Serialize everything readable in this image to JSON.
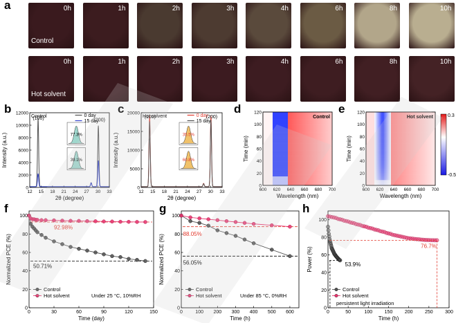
{
  "panel_a": {
    "letter": "a",
    "rows": [
      {
        "name": "control",
        "label": "Control",
        "tiles": [
          {
            "time": "0h",
            "color": "#3a1a1e"
          },
          {
            "time": "1h",
            "color": "#3c1c1f"
          },
          {
            "time": "2h",
            "color": "#4a3a30"
          },
          {
            "time": "3h",
            "color": "#4d3b31"
          },
          {
            "time": "4h",
            "color": "#5a4a3c"
          },
          {
            "time": "6h",
            "color": "#6b5b44"
          },
          {
            "time": "8h",
            "color": "#b2a68a"
          },
          {
            "time": "10h",
            "color": "#b9ae90"
          }
        ]
      },
      {
        "name": "hot-solvent",
        "label": "Hot solvent",
        "tiles": [
          {
            "time": "0h",
            "color": "#3b1a1f"
          },
          {
            "time": "1h",
            "color": "#3b1a1f"
          },
          {
            "time": "2h",
            "color": "#3c1b20"
          },
          {
            "time": "3h",
            "color": "#3c1b20"
          },
          {
            "time": "4h",
            "color": "#3d1c21"
          },
          {
            "time": "6h",
            "color": "#3e1d21"
          },
          {
            "time": "8h",
            "color": "#411f23"
          },
          {
            "time": "10h",
            "color": "#442225"
          }
        ]
      }
    ]
  },
  "colors": {
    "control": "#505050",
    "hot_solvent": "#e8336d",
    "red": "#e23a2e",
    "blue": "#3344cc",
    "dashed_gray": "#555555"
  },
  "chart_data": [
    {
      "id": "b",
      "letter": "b",
      "type": "line",
      "sample_label": "Control",
      "xlabel": "2θ (degree)",
      "ylabel": "Intensity (a.u.)",
      "xlim": [
        12,
        33
      ],
      "ylim": [
        0,
        12000
      ],
      "xticks": [
        12,
        15,
        18,
        21,
        24,
        27,
        30,
        33
      ],
      "yticks": [
        0,
        2000,
        4000,
        6000,
        8000,
        10000,
        12000
      ],
      "peak_labels": [
        {
          "x": 14.3,
          "y": 10900,
          "text": "(100)"
        },
        {
          "x": 30.4,
          "y": 10600,
          "text": "(200)"
        }
      ],
      "series": [
        {
          "name": "0 day",
          "color": "#505050",
          "peaks": [
            [
              14.2,
              11000
            ],
            [
              28.2,
              650
            ],
            [
              30.1,
              9800
            ]
          ]
        },
        {
          "name": "15 day",
          "color": "#3344cc",
          "peaks": [
            [
              14.2,
              2100
            ],
            [
              28.2,
              600
            ],
            [
              30.1,
              4200
            ]
          ]
        }
      ],
      "insets": [
        {
          "label": "77.3%"
        },
        {
          "label": "39.1%"
        }
      ]
    },
    {
      "id": "c",
      "letter": "c",
      "type": "line",
      "sample_label": "Hot solvent",
      "xlabel": "2θ (degree)",
      "ylabel": "Intensity (a.u.)",
      "xlim": [
        12,
        33
      ],
      "ylim": [
        0,
        20000
      ],
      "xticks": [
        12,
        15,
        18,
        21,
        24,
        27,
        30,
        33
      ],
      "yticks": [
        0,
        5000,
        10000,
        15000,
        20000
      ],
      "peak_labels": [
        {
          "x": 14.3,
          "y": 18500,
          "text": "(100)"
        },
        {
          "x": 30.3,
          "y": 18500,
          "text": "(200)"
        }
      ],
      "series": [
        {
          "name": "0 day",
          "color": "#e23a2e",
          "peaks": [
            [
              14.2,
              19000
            ],
            [
              28.2,
              900
            ],
            [
              30.1,
              19000
            ]
          ]
        },
        {
          "name": "15 day",
          "color": "#505050",
          "peaks": [
            [
              14.2,
              17500
            ],
            [
              28.2,
              800
            ],
            [
              30.1,
              17800
            ]
          ]
        }
      ],
      "insets": [
        {
          "label": "35.5%"
        },
        {
          "label": "60.8%"
        }
      ]
    },
    {
      "id": "d",
      "letter": "d",
      "type": "heatmap",
      "title": "Control",
      "xlabel": "Wavelength (nm)",
      "ylabel": "Time (min)",
      "xlim": [
        600,
        700
      ],
      "ylim": [
        0,
        120
      ],
      "xticks": [
        600,
        620,
        640,
        660,
        680,
        700
      ],
      "yticks": [
        0,
        20,
        40,
        60,
        80,
        100,
        120
      ]
    },
    {
      "id": "e",
      "letter": "e",
      "type": "heatmap",
      "title": "Hot solvent",
      "xlabel": "Wavelength (nm)",
      "ylabel": "Time (min)",
      "xlim": [
        600,
        700
      ],
      "ylim": [
        0,
        120
      ],
      "xticks": [
        600,
        620,
        640,
        660,
        680,
        700
      ],
      "yticks": [
        0,
        20,
        40,
        60,
        80,
        100,
        120
      ],
      "colorbar": {
        "max": "0.3",
        "min": "-0.5"
      }
    },
    {
      "id": "f",
      "letter": "f",
      "type": "line",
      "xlabel": "Time (day)",
      "ylabel": "Normalized PCE (%)",
      "xlim": [
        0,
        150
      ],
      "ylim": [
        0,
        105
      ],
      "xticks": [
        0,
        30,
        60,
        90,
        120,
        150
      ],
      "yticks": [
        0,
        20,
        40,
        60,
        80,
        100
      ],
      "condition": "Under 25 °C, 10%RH",
      "annotations": [
        {
          "text": "92.98%",
          "x": 30,
          "y": 85,
          "color": "#e23a2e"
        },
        {
          "text": "50.71%",
          "x": 5,
          "y": 43,
          "color": "#000000"
        }
      ],
      "hlines": [
        {
          "y": 93,
          "color": "#e23a2e"
        },
        {
          "y": 50.7,
          "color": "#000000"
        }
      ],
      "series": [
        {
          "name": "Control",
          "color": "#505050",
          "x": [
            0,
            2,
            4,
            6,
            8,
            10,
            15,
            20,
            30,
            40,
            50,
            60,
            70,
            80,
            90,
            100,
            110,
            120,
            130,
            140
          ],
          "y": [
            100,
            91,
            88,
            86,
            84,
            82,
            79,
            76,
            72,
            69,
            66,
            64,
            62,
            60,
            58,
            56,
            55,
            53,
            52,
            50.7
          ]
        },
        {
          "name": "Hot solvent",
          "color": "#e8336d",
          "x": [
            0,
            2,
            4,
            6,
            8,
            10,
            15,
            20,
            30,
            40,
            50,
            60,
            70,
            80,
            90,
            100,
            110,
            120,
            130,
            140
          ],
          "y": [
            100,
            97,
            96,
            96,
            95.5,
            95.3,
            95,
            95,
            94.8,
            94.5,
            94.3,
            94.2,
            94,
            93.8,
            93.6,
            93.5,
            93.3,
            93.2,
            93.1,
            93
          ]
        }
      ]
    },
    {
      "id": "g",
      "letter": "g",
      "type": "line",
      "xlabel": "Time (h)",
      "ylabel": "Normalized PCE (%)",
      "xlim": [
        0,
        650
      ],
      "ylim": [
        0,
        105
      ],
      "xticks": [
        0,
        100,
        200,
        300,
        400,
        500,
        600
      ],
      "yticks": [
        0,
        20,
        40,
        60,
        80,
        100
      ],
      "condition": "Under 85 °C, 0%RH",
      "annotations": [
        {
          "text": "88.05%",
          "x": 10,
          "y": 78,
          "color": "#e23a2e"
        },
        {
          "text": "56.05%",
          "x": 10,
          "y": 47,
          "color": "#000000"
        }
      ],
      "hlines": [
        {
          "y": 88,
          "color": "#e23a2e"
        },
        {
          "y": 56,
          "color": "#000000"
        }
      ],
      "series": [
        {
          "name": "Control",
          "color": "#505050",
          "x": [
            0,
            50,
            100,
            150,
            200,
            250,
            300,
            350,
            400,
            500,
            600
          ],
          "y": [
            100,
            94,
            92,
            89,
            84,
            81,
            78,
            74,
            70,
            63,
            56
          ]
        },
        {
          "name": "Hot solvent",
          "color": "#e8336d",
          "x": [
            0,
            50,
            100,
            150,
            200,
            250,
            300,
            350,
            400,
            500,
            600
          ],
          "y": [
            100,
            98,
            97,
            96,
            95,
            94,
            93,
            92,
            91,
            89.5,
            88
          ]
        }
      ]
    },
    {
      "id": "h",
      "letter": "h",
      "type": "scatter",
      "xlabel": "Time (h)",
      "ylabel": "Power (%)",
      "xlim": [
        0,
        300
      ],
      "ylim": [
        0,
        110
      ],
      "xticks": [
        0,
        50,
        100,
        150,
        200,
        250,
        300
      ],
      "yticks": [
        0,
        20,
        40,
        60,
        80,
        100
      ],
      "condition": "persistent light irradiation",
      "annotations": [
        {
          "text": "76.7%",
          "x": 230,
          "y": 68,
          "color": "#e23a2e"
        },
        {
          "text": "53.9%",
          "x": 42,
          "y": 47,
          "color": "#000000"
        }
      ],
      "series": [
        {
          "name": "Control",
          "color": "#505050",
          "x": [
            0,
            1,
            2,
            3,
            4,
            5,
            6,
            7,
            8,
            9,
            10,
            11,
            12,
            13,
            14,
            15,
            16,
            17,
            18,
            19,
            20,
            21,
            22,
            23,
            24,
            25,
            26,
            27,
            28,
            29,
            30
          ],
          "y": [
            92,
            88,
            84,
            81,
            78,
            76,
            74,
            72,
            70,
            68,
            67,
            66,
            65,
            64,
            63,
            62,
            61,
            60.5,
            60,
            59,
            58.5,
            58,
            57.5,
            57,
            56.5,
            56,
            55.5,
            55,
            54.5,
            54.2,
            53.9
          ]
        },
        {
          "name": "Hot solvent",
          "color": "#e8336d",
          "x": [
            0,
            5,
            10,
            15,
            20,
            25,
            30,
            35,
            40,
            45,
            50,
            55,
            60,
            65,
            70,
            75,
            80,
            85,
            90,
            95,
            100,
            105,
            110,
            115,
            120,
            125,
            130,
            135,
            140,
            145,
            150,
            155,
            160,
            165,
            170,
            175,
            180,
            185,
            190,
            195,
            200,
            205,
            210,
            215,
            220,
            225,
            230,
            235,
            240,
            245,
            250,
            255,
            260,
            265,
            270
          ],
          "y": [
            104,
            103.5,
            103,
            102.5,
            102,
            101,
            100.5,
            100,
            99,
            98.5,
            98,
            97,
            96.5,
            96,
            95,
            94.5,
            94,
            93,
            92.5,
            92,
            91,
            90.5,
            90,
            89,
            88.5,
            88,
            87,
            86.5,
            86,
            85,
            84.5,
            84,
            83,
            82.5,
            82,
            81.5,
            81,
            80.5,
            80,
            79.5,
            79,
            78.8,
            78.5,
            78.2,
            78,
            77.8,
            77.5,
            77.3,
            77.1,
            77,
            76.9,
            76.8,
            76.8,
            76.7,
            76.7
          ]
        }
      ]
    }
  ]
}
